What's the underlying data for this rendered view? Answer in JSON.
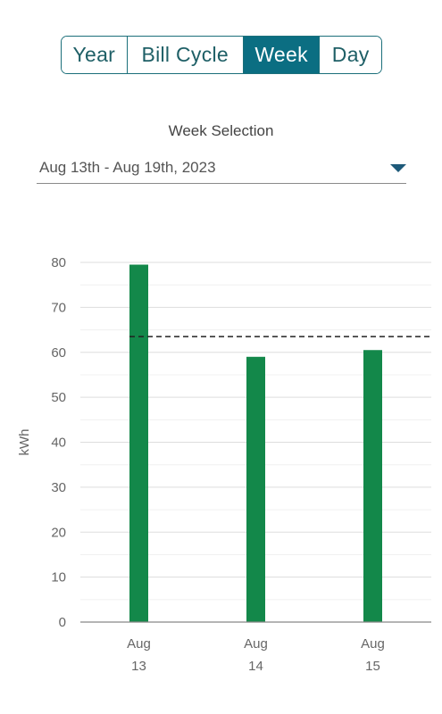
{
  "tabs": [
    {
      "label": "Year",
      "active": false
    },
    {
      "label": "Bill Cycle",
      "active": false
    },
    {
      "label": "Week",
      "active": true
    },
    {
      "label": "Day",
      "active": false
    }
  ],
  "week_selection": {
    "label": "Week Selection",
    "value": "Aug 13th - Aug 19th, 2023",
    "caret_icon": "caret-down-icon"
  },
  "colors": {
    "accent": "#0b6e82",
    "bar": "#13884a",
    "grid": "#dddddd",
    "average_line": "#222222"
  },
  "chart_data": {
    "type": "bar",
    "categories": [
      [
        "Aug",
        "13"
      ],
      [
        "Aug",
        "14"
      ],
      [
        "Aug",
        "15"
      ]
    ],
    "values": [
      79.5,
      59,
      60.5
    ],
    "average_line": 63.5,
    "title": "",
    "xlabel": "",
    "ylabel": "kWh",
    "ylim": [
      0,
      80
    ],
    "yticks": [
      0,
      10,
      20,
      30,
      40,
      50,
      60,
      70,
      80
    ],
    "grid": true
  }
}
